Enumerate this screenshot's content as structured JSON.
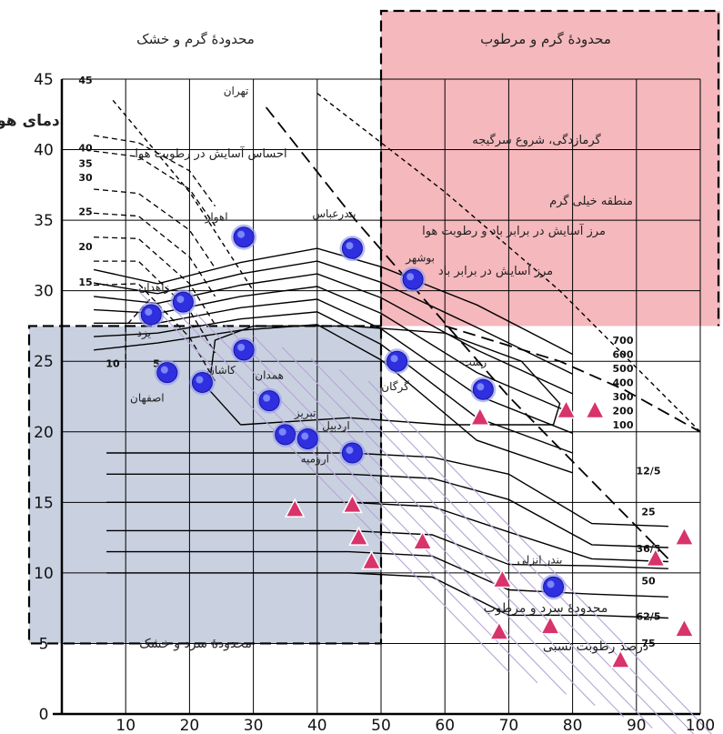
{
  "chart_data": {
    "type": "scatter",
    "title": "",
    "xlabel": "درصد رطوبت نسبی",
    "ylabel": "دمای هوا",
    "xlim": [
      0,
      100
    ],
    "ylim": [
      0,
      45
    ],
    "x_ticks": [
      10,
      20,
      30,
      40,
      50,
      60,
      70,
      80,
      90,
      100
    ],
    "y_ticks": [
      0,
      5,
      10,
      15,
      20,
      25,
      30,
      35,
      40,
      45
    ],
    "grid": true,
    "colors": {
      "hot_humid_zone": "#f5b8bd",
      "cold_dry_zone": "#c9d1e0",
      "city_marker": "#2f2fe0",
      "triangle_marker": "#d8336b",
      "curve": "#000000"
    },
    "zones": [
      {
        "label": "محدودهٔ گرم و خشک",
        "x": [
          0,
          50
        ],
        "y": [
          27.5,
          45
        ]
      },
      {
        "label": "محدودهٔ گرم و مرطوب",
        "x": [
          50,
          100
        ],
        "y": [
          27.5,
          45
        ]
      },
      {
        "label": "محدودهٔ سرد و خشک",
        "x": [
          0,
          50
        ],
        "y": [
          5,
          27.5
        ]
      },
      {
        "label": "محدودهٔ سرد و مرطوب",
        "x": [
          50,
          100
        ],
        "y": [
          5,
          27.5
        ]
      }
    ],
    "annotations": [
      "احساس آسایش در رطوبت هوا",
      "گرمازدگی، شروع سرگیجه",
      "منطقه خیلی گرم",
      "مرز آسایش در برابر باد و رطوبت هوا",
      "مرز آسایش در برابر باد"
    ],
    "wind_labels_left": [
      "45",
      "40",
      "35",
      "30",
      "25",
      "20",
      "15",
      "10",
      "5"
    ],
    "wind_labels_right": [
      "700",
      "600",
      "500",
      "400",
      "300",
      "200",
      "100"
    ],
    "humidity_labels": [
      "12/5",
      "25",
      "36/5",
      "50",
      "62/5",
      "75"
    ],
    "cities": [
      {
        "name": "تهران",
        "x": 28,
        "y": 42.5,
        "marker": false
      },
      {
        "name": "اهواز",
        "x": 28.5,
        "y": 33.8
      },
      {
        "name": "زاهدان",
        "x": 19,
        "y": 29.2
      },
      {
        "name": "کاشان",
        "x": 28.5,
        "y": 25.8
      },
      {
        "name": "یزد",
        "x": 14,
        "y": 28.3
      },
      {
        "name": "اصفهان",
        "x": 16.5,
        "y": 24.2
      },
      {
        "name": "",
        "x": 22,
        "y": 23.5
      },
      {
        "name": "همدان",
        "x": 32.5,
        "y": 22.2
      },
      {
        "name": "تبریز",
        "x": 35,
        "y": 19.8
      },
      {
        "name": "ارومیه",
        "x": 38.5,
        "y": 19.5
      },
      {
        "name": "اردبیل",
        "x": 45.5,
        "y": 18.5
      },
      {
        "name": "بندرعباس",
        "x": 45.5,
        "y": 33
      },
      {
        "name": "بوشهر",
        "x": 55,
        "y": 30.8
      },
      {
        "name": "گرگان",
        "x": 52.5,
        "y": 25
      },
      {
        "name": "رشت",
        "x": 66,
        "y": 23
      },
      {
        "name": "بندر انزلی",
        "x": 77,
        "y": 9
      }
    ],
    "triangles": [
      {
        "x": 36.5,
        "y": 14.5
      },
      {
        "x": 45.5,
        "y": 14.8
      },
      {
        "x": 46.5,
        "y": 12.5
      },
      {
        "x": 48.5,
        "y": 10.8
      },
      {
        "x": 56.5,
        "y": 12.2
      },
      {
        "x": 65.5,
        "y": 21
      },
      {
        "x": 69,
        "y": 9.5
      },
      {
        "x": 68.5,
        "y": 5.8
      },
      {
        "x": 76.5,
        "y": 6.2
      },
      {
        "x": 79,
        "y": 21.5
      },
      {
        "x": 83.5,
        "y": 21.5
      },
      {
        "x": 87.5,
        "y": 3.8
      },
      {
        "x": 93,
        "y": 11
      },
      {
        "x": 97.5,
        "y": 12.5
      },
      {
        "x": 97.5,
        "y": 6
      }
    ]
  }
}
